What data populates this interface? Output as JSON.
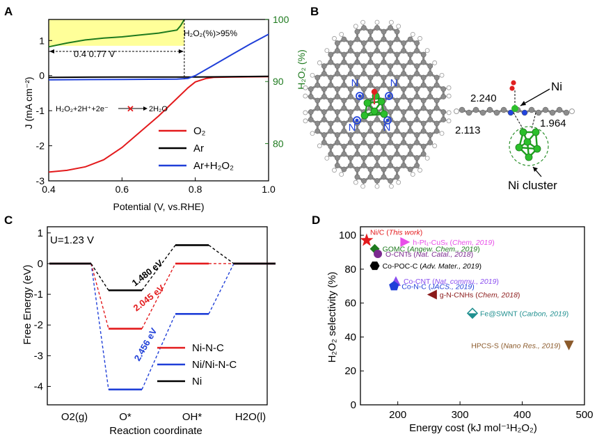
{
  "colors": {
    "red": "#e31a1c",
    "black": "#000000",
    "blue": "#1f3fd8",
    "green": "#1e7a1e",
    "highlight": "#ffff99",
    "dark_red": "#8b1a1a",
    "magenta": "#e84ee8",
    "purple": "#7b2a8f",
    "violet": "#8a4df0",
    "teal": "#1f8f8f",
    "brown": "#8b5a2b",
    "atom_grey": "#8c8c8c",
    "atom_h": "#ffffff",
    "atom_n": "#2244dd",
    "atom_ni": "#2bbf2b",
    "atom_o": "#e02020"
  },
  "panels": {
    "A": {
      "letter": "A"
    },
    "B": {
      "letter": "B"
    },
    "C": {
      "letter": "C"
    },
    "D": {
      "letter": "D"
    }
  },
  "panel_A": {
    "ylabel_left": "J (mA cm⁻²)",
    "ylabel_right": "H₂O₂ (%)",
    "xlabel": "Potential (V, vs.RHE)",
    "xticks": [
      "0.4",
      "0.6",
      "0.8",
      "1.0"
    ],
    "yticks_left": [
      "1",
      "0",
      "-1",
      "-2",
      "-3"
    ],
    "yticks_right": [
      "100",
      "90",
      "80"
    ],
    "annot_selectivity": "H₂O₂(%)>95%",
    "annot_range": "0.4   0.77 V",
    "reaction": {
      "left": "H₂O₂+2H⁺+2e⁻",
      "right": "2H₂O"
    },
    "legend": [
      "O₂",
      "Ar",
      "Ar+H₂O₂"
    ]
  },
  "panel_B": {
    "n_label": "N",
    "bond_top": "2.240",
    "bond_left": "2.113",
    "bond_right": "1.964",
    "ni_label": "Ni",
    "cluster_label": "Ni cluster"
  },
  "panel_C": {
    "condition": "U=1.23 V",
    "ylabel": "Free Energy (eV)",
    "xlabel": "Reaction coordinate",
    "xticks": [
      "O2(g)",
      "O*",
      "OH*",
      "H2O(l)"
    ],
    "yticks": [
      "1",
      "0",
      "-1",
      "-2",
      "-3",
      "-4"
    ],
    "barriers": [
      "1.480 eV",
      "2.045 eV",
      "2.456 eV"
    ],
    "legend": [
      "Ni-N-C",
      "Ni/Ni-N-C",
      "Ni"
    ]
  },
  "panel_D": {
    "ylabel": "H₂O₂ selectivity (%)",
    "xlabel": "Energy cost  (kJ mol⁻¹H₂O₂)",
    "xticks": [
      "200",
      "300",
      "400",
      "500"
    ],
    "yticks": [
      "100",
      "80",
      "60",
      "40",
      "20",
      "0"
    ]
  },
  "chart_data": [
    {
      "type": "line",
      "panel": "A",
      "xlabel": "Potential (V, vs.RHE)",
      "ylabel": "J (mA cm⁻²)",
      "y2label": "H₂O₂ (%)",
      "xlim": [
        0.4,
        1.0
      ],
      "ylim": [
        -3.0,
        1.6
      ],
      "y2lim": [
        74,
        100
      ],
      "series": [
        {
          "name": "O₂",
          "color": "#e31a1c",
          "x": [
            0.4,
            0.45,
            0.5,
            0.55,
            0.6,
            0.65,
            0.7,
            0.75,
            0.78,
            0.8,
            0.83,
            0.85,
            0.9,
            1.0
          ],
          "y": [
            -2.75,
            -2.7,
            -2.6,
            -2.4,
            -2.05,
            -1.6,
            -1.15,
            -0.65,
            -0.35,
            -0.18,
            -0.08,
            -0.05,
            -0.04,
            -0.03
          ]
        },
        {
          "name": "Ar",
          "color": "#000000",
          "x": [
            0.4,
            0.6,
            0.8,
            1.0
          ],
          "y": [
            -0.05,
            -0.04,
            -0.04,
            -0.02
          ]
        },
        {
          "name": "Ar+H₂O₂",
          "color": "#1f3fd8",
          "x": [
            0.4,
            0.6,
            0.75,
            0.78,
            0.8,
            0.85,
            0.9,
            0.95,
            1.0
          ],
          "y": [
            -0.12,
            -0.11,
            -0.1,
            -0.08,
            0.0,
            0.3,
            0.6,
            0.9,
            1.18
          ]
        },
        {
          "name": "H₂O₂ selectivity",
          "color": "#1e7a1e",
          "axis": "right",
          "x": [
            0.4,
            0.45,
            0.5,
            0.55,
            0.6,
            0.65,
            0.7,
            0.75,
            0.76,
            0.77
          ],
          "y": [
            95.6,
            96.2,
            96.7,
            97.0,
            97.2,
            97.5,
            97.8,
            98.3,
            99.0,
            100.0
          ]
        }
      ]
    },
    {
      "type": "line",
      "panel": "C",
      "xlabel": "Reaction coordinate",
      "ylabel": "Free Energy (eV)",
      "categories": [
        "O2(g)",
        "O*",
        "OH*",
        "H2O(l)"
      ],
      "ylim": [
        -4.6,
        1.2
      ],
      "series": [
        {
          "name": "Ni-N-C",
          "color": "#e31a1c",
          "values": [
            0,
            -2.12,
            0,
            0
          ]
        },
        {
          "name": "Ni/Ni-N-C",
          "color": "#1f3fd8",
          "values": [
            0,
            -4.1,
            -1.64,
            0
          ]
        },
        {
          "name": "Ni",
          "color": "#000000",
          "values": [
            0,
            -0.87,
            0.6,
            0
          ]
        }
      ],
      "annotations": [
        "1.480 eV",
        "2.045 eV",
        "2.456 eV"
      ]
    },
    {
      "type": "scatter",
      "panel": "D",
      "xlabel": "Energy cost  (kJ mol⁻¹H₂O₂)",
      "ylabel": "H₂O₂ selectivity (%)",
      "xlim": [
        140,
        500
      ],
      "ylim": [
        0,
        105
      ],
      "points": [
        {
          "label": "Ni/C",
          "ref": "This work",
          "x": 150,
          "y": 97,
          "marker": "star",
          "color": "#e31a1c"
        },
        {
          "label": "h-Pt₁-CuSₓ",
          "ref": "Chem, 2019",
          "x": 212,
          "y": 96,
          "marker": "triangle-right",
          "color": "#e84ee8"
        },
        {
          "label": "GOMC",
          "ref": "Angew. Chem., 2019",
          "x": 163,
          "y": 92,
          "marker": "diamond",
          "color": "#1e7a1e"
        },
        {
          "label": "O-CNTs",
          "ref": "Nat. Catal., 2018",
          "x": 168,
          "y": 89,
          "marker": "circle",
          "color": "#7b2a8f"
        },
        {
          "label": "Co-POC-C",
          "ref": "Adv. Mater., 2019",
          "x": 163,
          "y": 82,
          "marker": "hexagon",
          "color": "#000000"
        },
        {
          "label": "Co-CNT",
          "ref": "Nat. commu., 2019",
          "x": 197,
          "y": 73,
          "marker": "triangle-up",
          "color": "#8a4df0"
        },
        {
          "label": "Co-N-C",
          "ref": "JACS., 2019",
          "x": 194,
          "y": 70,
          "marker": "pentagon",
          "color": "#1f3fd8"
        },
        {
          "label": "g-N-CNHs",
          "ref": "Chem, 2018",
          "x": 255,
          "y": 65,
          "marker": "triangle-left",
          "color": "#8b1a1a"
        },
        {
          "label": "Fe@SWNT",
          "ref": "Carbon, 2019",
          "x": 320,
          "y": 54,
          "marker": "diamond-half",
          "color": "#1f8f8f"
        },
        {
          "label": "HPCS-S",
          "ref": "Nano Res., 2019",
          "x": 475,
          "y": 35,
          "marker": "triangle-down",
          "color": "#8b5a2b"
        }
      ]
    }
  ]
}
